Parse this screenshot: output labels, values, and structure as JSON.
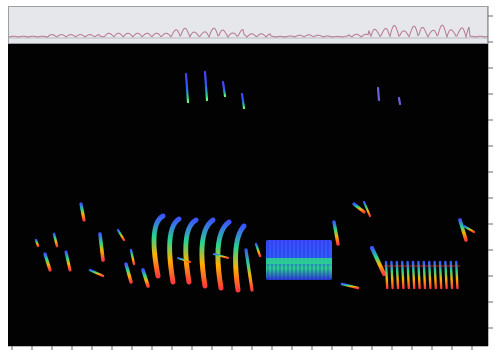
{
  "chart_data": {
    "type": "spectrogram",
    "title": "",
    "xlabel": "",
    "ylabel": "",
    "grid": false,
    "colors": {
      "background": "#020202",
      "oscillogram_bg": "#e6e7ea",
      "oscillogram_trace": "#b06a8a",
      "low_energy": "#3b56ff",
      "mid_energy": "#2bd68b",
      "high_energy": "#ffb100",
      "peak_energy": "#ff3b3b"
    }
  }
}
